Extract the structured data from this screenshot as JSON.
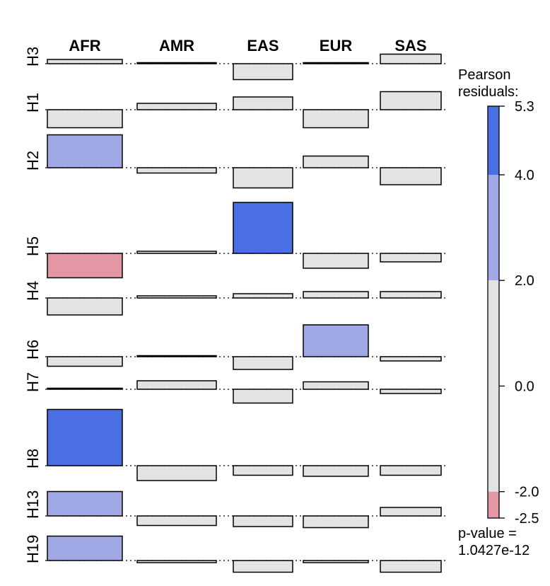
{
  "chart_data": {
    "type": "association-plot",
    "columns": [
      "AFR",
      "AMR",
      "EAS",
      "EUR",
      "SAS"
    ],
    "rows": [
      "H3",
      "H1",
      "H2",
      "H5",
      "H4",
      "H6",
      "H7",
      "H8",
      "H13",
      "H19"
    ],
    "residuals": [
      [
        0.4,
        0.1,
        -1.5,
        0.1,
        0.9
      ],
      [
        -1.7,
        0.6,
        1.2,
        -1.7,
        1.7
      ],
      [
        3.1,
        -0.5,
        -1.9,
        1.1,
        -1.6
      ],
      [
        -2.3,
        0.2,
        4.8,
        -1.4,
        -0.8
      ],
      [
        -1.6,
        0.2,
        0.4,
        0.6,
        0.6
      ],
      [
        -0.9,
        0.1,
        -1.2,
        3.0,
        -0.4
      ],
      [
        0.1,
        0.8,
        -1.3,
        0.7,
        -0.4
      ],
      [
        5.3,
        -1.4,
        -0.9,
        -1.0,
        -0.9
      ],
      [
        2.3,
        -0.9,
        -1.0,
        -1.1,
        0.8
      ],
      [
        2.3,
        -0.2,
        -1.1,
        -0.2,
        -1.1
      ]
    ],
    "colorbar": {
      "title": "Pearson residuals:",
      "ticks": [
        "5.3",
        "4.0",
        "2.0",
        "0.0",
        "-2.0",
        "-2.5"
      ],
      "tick_values": [
        5.3,
        4.0,
        2.0,
        0.0,
        -2.0,
        -2.5
      ],
      "range": [
        -2.5,
        5.3
      ],
      "bands": [
        {
          "from": 4.0,
          "to": 5.3,
          "color": "#4a6fe3"
        },
        {
          "from": 2.0,
          "to": 4.0,
          "color": "#a0a8e6"
        },
        {
          "from": -2.0,
          "to": 2.0,
          "color": "#e3e3e3"
        },
        {
          "from": -2.5,
          "to": -2.0,
          "color": "#e396a4"
        }
      ]
    },
    "p_value_label": "p-value =",
    "p_value": "1.0427e-12"
  }
}
